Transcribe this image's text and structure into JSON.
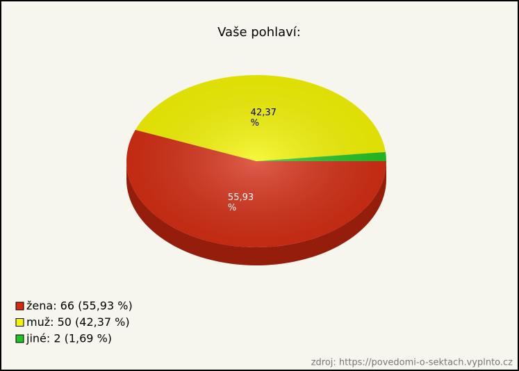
{
  "chart_data": {
    "type": "pie3d",
    "title": "Vaše pohlaví:",
    "categories": [
      "žena",
      "muž",
      "jiné"
    ],
    "values": [
      55.93,
      42.37,
      1.69
    ],
    "value_labels": [
      "55,93 %",
      "42,37 %",
      null
    ],
    "colors": [
      "#d42a10",
      "#f5f500",
      "#22c322"
    ],
    "legend_labels": [
      "žena: 66 (55,93 %)",
      "muž: 50 (42,37 %)",
      "jiné: 2 (1,69 %)"
    ],
    "legend": "bottom-left",
    "source": "zdroj: https://povedomi-o-sektach.vyplnto.cz"
  }
}
